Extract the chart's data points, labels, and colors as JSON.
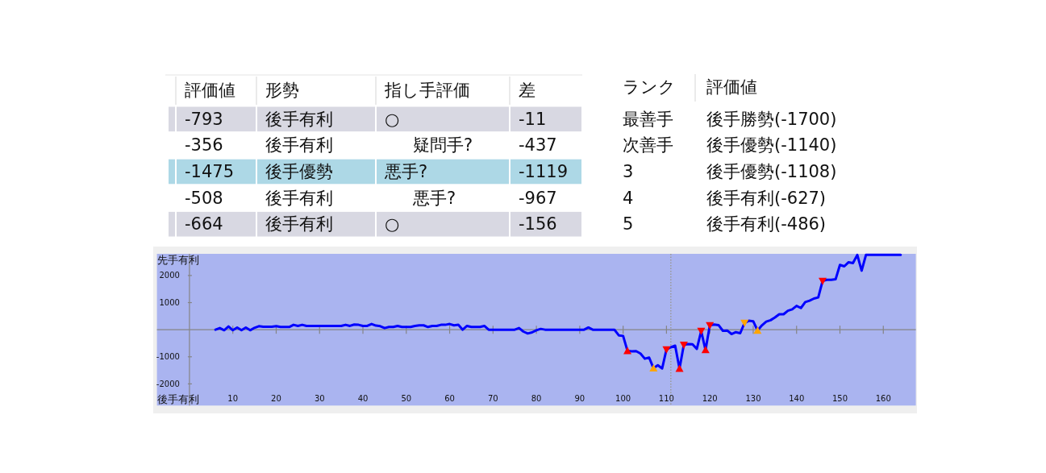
{
  "chart_data": [
    {
      "type": "other",
      "categories": [
        "評価値",
        "形勢",
        "指し手評価",
        "差"
      ],
      "cell_labels": [
        [
          "-793",
          "後手有利",
          "○",
          "-11"
        ],
        [
          "-356",
          "後手有利",
          "疑問手?",
          "-437"
        ],
        [
          "-1475",
          "後手優勢",
          "悪手?",
          "-1119"
        ],
        [
          "-508",
          "後手有利",
          "悪手?",
          "-967"
        ],
        [
          "-664",
          "後手有利",
          "○",
          "-156"
        ]
      ],
      "colors": [
        "#d8d8e2",
        null,
        "#add8e6",
        null,
        "#d8d8e2"
      ]
    },
    {
      "type": "other",
      "categories": [
        "ランク",
        "評価値"
      ],
      "cell_labels": [
        [
          "最善手",
          "後手勝勢(-1700)"
        ],
        [
          "次善手",
          "後手優勢(-1140)"
        ],
        [
          "3",
          "後手優勢(-1108)"
        ],
        [
          "4",
          "後手有利(-627)"
        ],
        [
          "5",
          "後手有利(-486)"
        ]
      ]
    },
    {
      "type": "line",
      "xlim": [
        -7.5,
        167.5
      ],
      "ylim": [
        -2800,
        2800
      ],
      "xticks": [
        10,
        20,
        30,
        40,
        50,
        60,
        70,
        80,
        90,
        100,
        110,
        120,
        130,
        140,
        150,
        160
      ],
      "yticks": [
        -2000,
        -1000,
        1000,
        2000
      ],
      "annotations": [
        "先手有利",
        "後手有利"
      ],
      "ref_lines": [
        {
          "axis": "x",
          "value": 111,
          "color": "#999999",
          "line_style": "dotted"
        }
      ],
      "series": [
        {
          "color": "#0000ff",
          "x": [
            6,
            7,
            8,
            9,
            10,
            11,
            12,
            13,
            14,
            15,
            16,
            17,
            18,
            19,
            20,
            21,
            22,
            23,
            24,
            25,
            26,
            27,
            28,
            29,
            30,
            31,
            32,
            33,
            34,
            35,
            36,
            37,
            38,
            39,
            40,
            41,
            42,
            43,
            44,
            45,
            46,
            47,
            48,
            49,
            50,
            51,
            52,
            53,
            54,
            55,
            56,
            57,
            58,
            59,
            60,
            61,
            62,
            63,
            64,
            65,
            66,
            67,
            68,
            69,
            70,
            71,
            72,
            73,
            74,
            75,
            76,
            77,
            78,
            79,
            80,
            81,
            82,
            83,
            84,
            85,
            86,
            87,
            88,
            89,
            90,
            91,
            92,
            93,
            94,
            95,
            96,
            97,
            98,
            99,
            100,
            101,
            102,
            103,
            104,
            105,
            106,
            107,
            108,
            109,
            110,
            111,
            112,
            113,
            114,
            115,
            116,
            117,
            118,
            119,
            120,
            121,
            122,
            123,
            124,
            125,
            126,
            127,
            128,
            129,
            130,
            131,
            132,
            133,
            134,
            135,
            136,
            137,
            138,
            139,
            140,
            141,
            142,
            143,
            144,
            145,
            146,
            147,
            148,
            149,
            150,
            151,
            152,
            153,
            154,
            155,
            156,
            157,
            158,
            159,
            160,
            161,
            162,
            163,
            164
          ],
          "values": [
            0,
            60,
            -20,
            120,
            -20,
            80,
            -20,
            80,
            -20,
            70,
            130,
            110,
            110,
            110,
            130,
            100,
            100,
            100,
            180,
            140,
            180,
            140,
            140,
            140,
            140,
            140,
            140,
            140,
            140,
            140,
            180,
            140,
            190,
            180,
            140,
            140,
            210,
            150,
            130,
            60,
            100,
            100,
            140,
            100,
            100,
            100,
            140,
            160,
            160,
            100,
            140,
            140,
            180,
            180,
            210,
            160,
            180,
            0,
            140,
            100,
            100,
            100,
            140,
            0,
            0,
            0,
            0,
            0,
            0,
            0,
            60,
            -70,
            -140,
            -100,
            -20,
            30,
            0,
            0,
            0,
            0,
            0,
            0,
            0,
            0,
            0,
            0,
            80,
            0,
            0,
            0,
            0,
            0,
            0,
            -210,
            -230,
            -780,
            -800,
            -790,
            -880,
            -1070,
            -1030,
            -1420,
            -1310,
            -1430,
            -730,
            -650,
            -590,
            -1440,
            -560,
            -530,
            -540,
            -710,
            -50,
            -750,
            160,
            190,
            170,
            -40,
            -30,
            -160,
            -90,
            -130,
            250,
            330,
            310,
            -30,
            160,
            300,
            350,
            450,
            570,
            570,
            700,
            750,
            880,
            800,
            1020,
            1070,
            1150,
            1190,
            1800,
            1840,
            1840,
            1860,
            2390,
            2340,
            2490,
            2460,
            2760,
            2180,
            2760,
            2760,
            2760,
            2760,
            2760,
            2760,
            2760,
            2760,
            2760
          ]
        },
        {
          "type": "scatter",
          "color": "#ff0000",
          "marker": "triangle-down",
          "x": [
            110,
            114,
            118,
            120,
            146
          ],
          "values": [
            -730,
            -560,
            -50,
            160,
            1800
          ]
        },
        {
          "type": "scatter",
          "color": "#ff0000",
          "marker": "triangle",
          "x": [
            101,
            113,
            119
          ],
          "values": [
            -780,
            -1440,
            -750
          ]
        },
        {
          "type": "scatter",
          "color": "#ffa500",
          "marker": "triangle",
          "x": [
            107,
            131
          ],
          "values": [
            -1420,
            -30
          ]
        },
        {
          "type": "scatter",
          "color": "#ffa500",
          "marker": "triangle-down",
          "x": [
            128
          ],
          "values": [
            250
          ]
        }
      ]
    }
  ]
}
